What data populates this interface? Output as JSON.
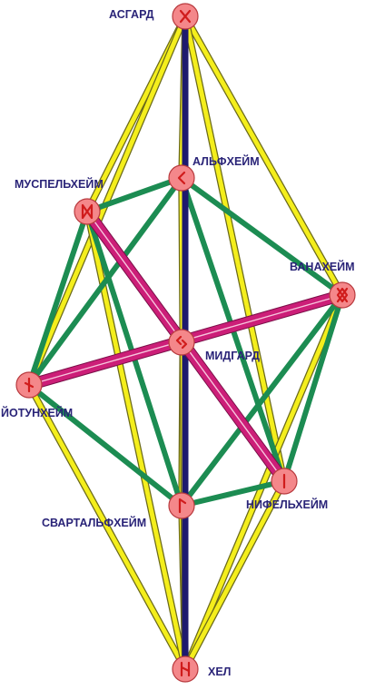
{
  "colors": {
    "yellow": "#f4ee1c",
    "green": "#1c8c52",
    "magenta": "#cc1e78",
    "navy": "#1e1a6e",
    "node_fill": "#f4878a",
    "node_stroke": "#b83a3e",
    "rune": "#d01c1c",
    "label": "#2a2478"
  },
  "worlds": [
    {
      "id": "asgard",
      "label": "АСГАРД",
      "rune_icon": "rune-gebo-icon"
    },
    {
      "id": "alfheim",
      "label": "АЛЬФХЕЙМ",
      "rune_icon": "rune-kenaz-icon"
    },
    {
      "id": "muspelheim",
      "label": "МУСПЕЛЬХЕЙМ",
      "rune_icon": "rune-dagaz-icon"
    },
    {
      "id": "vanaheim",
      "label": "ВАНАХЕЙМ",
      "rune_icon": "rune-ingwaz-icon"
    },
    {
      "id": "midgard",
      "label": "МИДГАРД",
      "rune_icon": "rune-jera-icon"
    },
    {
      "id": "jotunheim",
      "label": "ЙОТУНХЕЙМ",
      "rune_icon": "rune-nauthiz-icon"
    },
    {
      "id": "niflheim",
      "label": "НИФЕЛЬХЕЙМ",
      "rune_icon": "rune-isa-icon"
    },
    {
      "id": "svartalfheim",
      "label": "СВАРТАЛЬФХЕЙМ",
      "rune_icon": "rune-laguz-icon"
    },
    {
      "id": "hel",
      "label": "ХЕЛ",
      "rune_icon": "rune-hagalaz-icon"
    }
  ],
  "connections": {
    "yellow": [
      [
        "asgard",
        "muspelheim"
      ],
      [
        "asgard",
        "jotunheim"
      ],
      [
        "asgard",
        "svartalfheim"
      ],
      [
        "asgard",
        "vanaheim"
      ],
      [
        "asgard",
        "niflheim"
      ],
      [
        "asgard",
        "alfheim"
      ],
      [
        "hel",
        "jotunheim"
      ],
      [
        "hel",
        "muspelheim"
      ],
      [
        "hel",
        "vanaheim"
      ],
      [
        "hel",
        "niflheim"
      ],
      [
        "hel",
        "svartalfheim"
      ],
      [
        "hel",
        "alfheim"
      ]
    ],
    "green": [
      [
        "alfheim",
        "muspelheim"
      ],
      [
        "alfheim",
        "vanaheim"
      ],
      [
        "alfheim",
        "jotunheim"
      ],
      [
        "alfheim",
        "niflheim"
      ],
      [
        "muspelheim",
        "svartalfheim"
      ],
      [
        "muspelheim",
        "jotunheim"
      ],
      [
        "vanaheim",
        "svartalfheim"
      ],
      [
        "vanaheim",
        "niflheim"
      ],
      [
        "jotunheim",
        "svartalfheim"
      ],
      [
        "svartalfheim",
        "niflheim"
      ]
    ],
    "magenta": [
      [
        "muspelheim",
        "niflheim"
      ],
      [
        "jotunheim",
        "vanaheim"
      ]
    ],
    "navy": [
      [
        "asgard",
        "hel"
      ]
    ]
  }
}
